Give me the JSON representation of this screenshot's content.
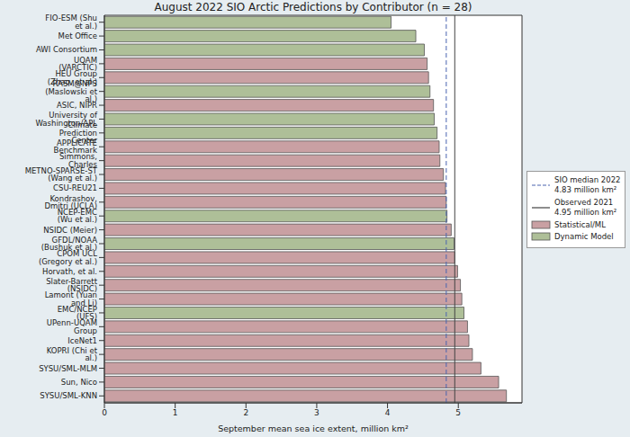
{
  "chart_data": {
    "type": "bar",
    "orientation": "horizontal",
    "title": "August 2022 SIO Arctic Predictions by Contributor (n = 28)",
    "x_label": "September mean sea ice extent, million km²",
    "categories": [
      "FIO-ESM (Shu et al.)",
      "Met Office",
      "AWI Consortium",
      "UQAM (VARCTIC)",
      "HEU Group (Zhao, et al.)",
      "RASM@NPS (Maslowski et al.)",
      "ASIC, NIPR",
      "University of Washington/APL",
      "Climate Prediction Center",
      "APPLICATE Benchmark",
      "Simmons, Charles",
      "METNO-SPARSE-ST (Wang et al.)",
      "CSU-REU21",
      "Kondrashov, Dmitri (UCLA)",
      "NCEP-EMC (Wu et al.)",
      "NSIDC (Meier)",
      "GFDL/NOAA (Bushuk et al.)",
      "CPOM UCL (Gregory et al.)",
      "Horvath, et al.",
      "Slater-Barrett (NSIDC)",
      "Lamont (Yuan and Li)",
      "EMC/NCEP (UFS)",
      "UPenn-UQAM Group",
      "IceNet1",
      "KOPRI (Chi et al.)",
      "SYSU/SML-MLM",
      "Sun, Nico",
      "SYSU/SML-KNN"
    ],
    "series": [
      {
        "name": "Statistical/ML",
        "color": "#c9a0a3",
        "values": [
          null,
          null,
          null,
          4.56,
          4.58,
          null,
          4.65,
          null,
          null,
          4.73,
          4.74,
          4.79,
          4.82,
          4.83,
          null,
          4.9,
          null,
          4.95,
          4.99,
          5.03,
          5.05,
          null,
          5.13,
          5.15,
          5.2,
          5.32,
          5.57,
          5.68
        ]
      },
      {
        "name": "Dynamic Model",
        "color": "#aebf98",
        "values": [
          4.05,
          4.4,
          4.52,
          null,
          null,
          4.6,
          null,
          4.66,
          4.7,
          null,
          null,
          null,
          null,
          null,
          4.84,
          null,
          4.94,
          null,
          null,
          null,
          null,
          5.08,
          null,
          null,
          null,
          null,
          null,
          null
        ]
      }
    ],
    "reference_lines": [
      {
        "label": "SIO median 2022\n4.83 million km²",
        "value": 4.83,
        "color": "#4a64b0",
        "line_style": "dashed"
      },
      {
        "label": "Observed 2021\n4.95 million km²",
        "value": 4.95,
        "color": "#444444",
        "line_style": "solid"
      }
    ],
    "xlim": [
      0,
      5.9
    ],
    "xticks": [
      0,
      1,
      2,
      3,
      4,
      5
    ],
    "legend": "right",
    "grid": false
  }
}
